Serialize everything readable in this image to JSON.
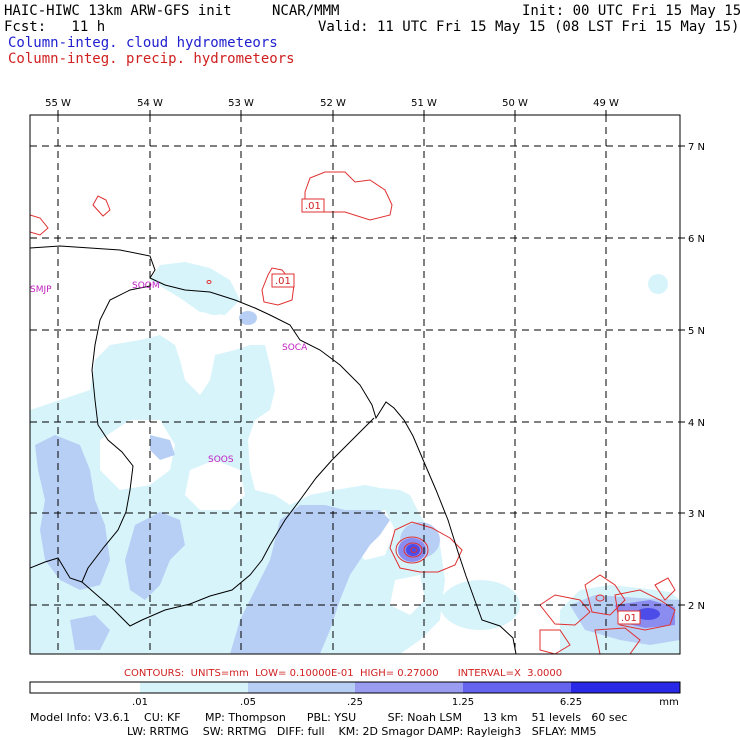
{
  "header": {
    "model": "HAIC-HIWC 13km ARW-GFS init",
    "org": "NCAR/MMM",
    "init": "Init: 00 UTC Fri 15 May 15",
    "fcst": "Fcst:   11 h",
    "valid": "Valid: 11 UTC Fri 15 May 15 (08 LST Fri 15 May 15)",
    "field1": "Column-integ. cloud hydrometeors",
    "field2": "Column-integ. precip. hydrometeors"
  },
  "lon_labels": [
    "55 W",
    "54 W",
    "53 W",
    "52 W",
    "51 W",
    "50 W",
    "49 W"
  ],
  "lat_labels": [
    "7 N",
    "6 N",
    "5 N",
    "4 N",
    "3 N",
    "2 N"
  ],
  "stations": [
    "SMJP",
    "SOOM",
    "SOCA",
    "SOOS"
  ],
  "contour_labels": [
    ".01",
    ".01",
    ".01"
  ],
  "contour_info": "CONTOURS:  UNITS=mm  LOW= 0.10000E-01  HIGH= 0.27000      INTERVAL=X  3.0000",
  "colorbar": {
    "ticks": [
      ".01",
      ".05",
      ".25",
      "1.25",
      "6.25"
    ],
    "unit": "mm",
    "colors": [
      "#ffffff",
      "#d8f4fb",
      "#b8cff5",
      "#9a9cf2",
      "#6464ee",
      "#2828e6"
    ]
  },
  "model_info": {
    "line1": "Model Info: V3.6.1    CU: KF       MP: Thompson      PBL: YSU         SF: Noah LSM      13 km    51 levels   60 sec",
    "line2": "LW: RRTMG    SW: RRTMG   DIFF: full    KM: 2D Smagor DAMP: Rayleigh3   SFLAY: MM5"
  }
}
